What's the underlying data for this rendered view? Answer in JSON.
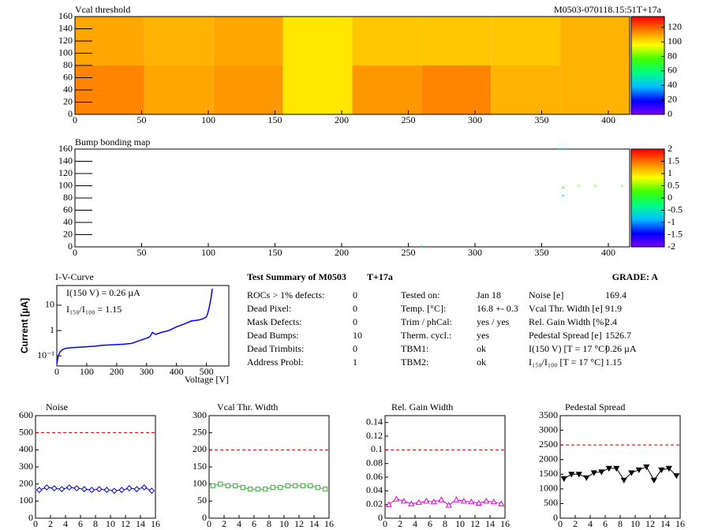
{
  "chart_data": [
    {
      "type": "heatmap",
      "title": "Vcal threshold",
      "subtitle": "M0503-070118.15:51T+17a",
      "xbins": [
        0,
        52,
        104,
        156,
        208,
        260,
        312,
        364,
        416
      ],
      "ybins": [
        0,
        80,
        160
      ],
      "values": [
        [
          115,
          110,
          112,
          100,
          112,
          115,
          108,
          108
        ],
        [
          110,
          108,
          110,
          100,
          105,
          105,
          105,
          108
        ]
      ],
      "xlim": [
        0,
        416
      ],
      "ylim": [
        0,
        160
      ],
      "xticks": [
        0,
        50,
        100,
        150,
        200,
        250,
        300,
        350,
        400
      ],
      "yticks": [
        0,
        20,
        40,
        60,
        80,
        100,
        120,
        140,
        160
      ],
      "zlim": [
        0,
        135
      ],
      "zticks": [
        0,
        20,
        40,
        60,
        80,
        100,
        120
      ],
      "colors": [
        "#8000ff",
        "#0000ff",
        "#00c0ff",
        "#00ff80",
        "#40ff00",
        "#ffff00",
        "#ff8000",
        "#ff0000"
      ]
    },
    {
      "type": "scatter",
      "title": "Bump bonding map",
      "x": [
        260,
        363,
        368,
        366,
        366,
        378,
        390,
        410
      ],
      "y": [
        1,
        160,
        160,
        84,
        97,
        100,
        100,
        100
      ],
      "z": [
        -0.5,
        -0.5,
        -0.5,
        -0.3,
        0.3,
        0.5,
        0.5,
        0.5
      ],
      "xlim": [
        0,
        416
      ],
      "ylim": [
        0,
        160
      ],
      "xticks": [
        0,
        50,
        100,
        150,
        200,
        250,
        300,
        350,
        400
      ],
      "yticks": [
        0,
        20,
        40,
        60,
        80,
        100,
        120,
        140,
        160
      ],
      "zlim": [
        -2,
        2
      ],
      "zticks": [
        -2,
        -1.5,
        -1,
        -0.5,
        0,
        0.5,
        1,
        1.5,
        2
      ],
      "colors": [
        "#8000ff",
        "#0000ff",
        "#00c0ff",
        "#00ff80",
        "#40ff00",
        "#ffff00",
        "#ff8000",
        "#ff0000"
      ]
    },
    {
      "type": "line",
      "title": "I-V-Curve",
      "xlabel": "Voltage [V]",
      "ylabel": "Current [µA]",
      "log_y": true,
      "color": "#0000ff",
      "annotations": [
        "I(150 V) = 0.26 µA",
        "I₁₅₀/I₁₀₀ =  1.15"
      ],
      "x": [
        0,
        5,
        10,
        20,
        30,
        50,
        75,
        100,
        125,
        150,
        175,
        200,
        225,
        250,
        275,
        300,
        310,
        320,
        330,
        350,
        375,
        400,
        425,
        450,
        475,
        490,
        500,
        505,
        510,
        515,
        520
      ],
      "values": [
        0.05,
        0.1,
        0.14,
        0.18,
        0.2,
        0.21,
        0.22,
        0.23,
        0.24,
        0.26,
        0.27,
        0.28,
        0.29,
        0.31,
        0.4,
        0.5,
        0.55,
        0.85,
        0.7,
        0.85,
        1.0,
        1.4,
        1.8,
        2.4,
        2.6,
        3.0,
        3.5,
        5,
        9,
        18,
        45
      ],
      "xlim": [
        0,
        575
      ],
      "ylim": [
        0.04,
        60
      ],
      "xticks": [
        0,
        100,
        200,
        300,
        400,
        500
      ],
      "yticks": [
        {
          "value": 0.1,
          "label": "10⁻¹"
        },
        1,
        10
      ]
    },
    {
      "type": "line",
      "title": "Noise",
      "marker": "diamond",
      "color": "#0000cc",
      "ref_line": 500,
      "x": [
        0.5,
        1.5,
        2.5,
        3.5,
        4.5,
        5.5,
        6.5,
        7.5,
        8.5,
        9.5,
        10.5,
        11.5,
        12.5,
        13.5,
        14.5,
        15.5
      ],
      "values": [
        165,
        180,
        175,
        170,
        180,
        175,
        170,
        165,
        170,
        165,
        160,
        165,
        175,
        170,
        180,
        160
      ],
      "xlim": [
        0,
        16
      ],
      "ylim": [
        0,
        600
      ],
      "xticks": [
        0,
        2,
        4,
        6,
        8,
        10,
        12,
        14,
        16
      ],
      "yticks": [
        0,
        100,
        200,
        300,
        400,
        500,
        600
      ]
    },
    {
      "type": "line",
      "title": "Vcal Thr. Width",
      "marker": "square",
      "color": "#33aa33",
      "ref_line": 200,
      "x": [
        0.5,
        1.5,
        2.5,
        3.5,
        4.5,
        5.5,
        6.5,
        7.5,
        8.5,
        9.5,
        10.5,
        11.5,
        12.5,
        13.5,
        14.5,
        15.5
      ],
      "values": [
        95,
        100,
        95,
        95,
        90,
        85,
        85,
        85,
        90,
        90,
        95,
        95,
        95,
        95,
        90,
        85
      ],
      "xlim": [
        0,
        16
      ],
      "ylim": [
        0,
        300
      ],
      "xticks": [
        0,
        2,
        4,
        6,
        8,
        10,
        12,
        14,
        16
      ],
      "yticks": [
        0,
        50,
        100,
        150,
        200,
        250,
        300
      ]
    },
    {
      "type": "line",
      "title": "Rel. Gain Width",
      "marker": "triangle-up",
      "color": "#dd00dd",
      "ref_line": 0.1,
      "x": [
        0.5,
        1.5,
        2.5,
        3.5,
        4.5,
        5.5,
        6.5,
        7.5,
        8.5,
        9.5,
        10.5,
        11.5,
        12.5,
        13.5,
        14.5,
        15.5
      ],
      "values": [
        0.02,
        0.028,
        0.025,
        0.021,
        0.023,
        0.025,
        0.024,
        0.027,
        0.019,
        0.027,
        0.025,
        0.024,
        0.022,
        0.025,
        0.024,
        0.021
      ],
      "xlim": [
        0,
        16
      ],
      "ylim": [
        0,
        0.15
      ],
      "xticks": [
        0,
        2,
        4,
        6,
        8,
        10,
        12,
        14,
        16
      ],
      "yticks": [
        0,
        0.02,
        0.04,
        0.06,
        0.08,
        0.1,
        0.12,
        0.14
      ]
    },
    {
      "type": "line",
      "title": "Pedestal Spread",
      "marker": "triangle-down",
      "color": "#000000",
      "ref_line": 2500,
      "x": [
        0.5,
        1.5,
        2.5,
        3.5,
        4.5,
        5.5,
        6.5,
        7.5,
        8.5,
        9.5,
        10.5,
        11.5,
        12.5,
        13.5,
        14.5,
        15.5
      ],
      "values": [
        1350,
        1500,
        1500,
        1380,
        1550,
        1580,
        1700,
        1700,
        1300,
        1550,
        1650,
        1750,
        1300,
        1650,
        1700,
        1450
      ],
      "xlim": [
        0,
        16
      ],
      "ylim": [
        0,
        3500
      ],
      "xticks": [
        0,
        2,
        4,
        6,
        8,
        10,
        12,
        14,
        16
      ],
      "yticks": [
        0,
        500,
        1000,
        1500,
        2000,
        2500,
        3000,
        3500
      ]
    }
  ],
  "summary": {
    "title": "Test Summary of M0503",
    "tag": "T+17a",
    "grade": "GRADE:  A",
    "columns": [
      [
        [
          "ROCs > 1% defects:",
          "0"
        ],
        [
          "Dead Pixel:",
          "0"
        ],
        [
          "Mask Defects:",
          "0"
        ],
        [
          "Dead Bumps:",
          "10"
        ],
        [
          "Dead Trimbits:",
          "0"
        ],
        [
          "Address Probl:",
          "1"
        ]
      ],
      [
        [
          "Tested on:",
          "Jan 18"
        ],
        [
          "Temp. [°C]:",
          "16.8 +- 0.3"
        ],
        [
          "Trim / phCal:",
          "yes / yes"
        ],
        [
          "Therm. cycl.:",
          "yes"
        ],
        [
          "TBM1:",
          "ok"
        ],
        [
          "TBM2:",
          "ok"
        ]
      ],
      [
        [
          "Noise [e]",
          "169.4"
        ],
        [
          "Vcal Thr. Width [e]",
          "91.9"
        ],
        [
          "Rel. Gain Width [%]",
          "2.4"
        ],
        [
          "Pedestal Spread [e]",
          "1526.7"
        ],
        [
          "I(150 V) [T = 17 °C]",
          "0.26 µA"
        ],
        [
          "I₁₅₀/I₁₀₀  [T = 17 °C]",
          "1.15"
        ]
      ]
    ]
  }
}
